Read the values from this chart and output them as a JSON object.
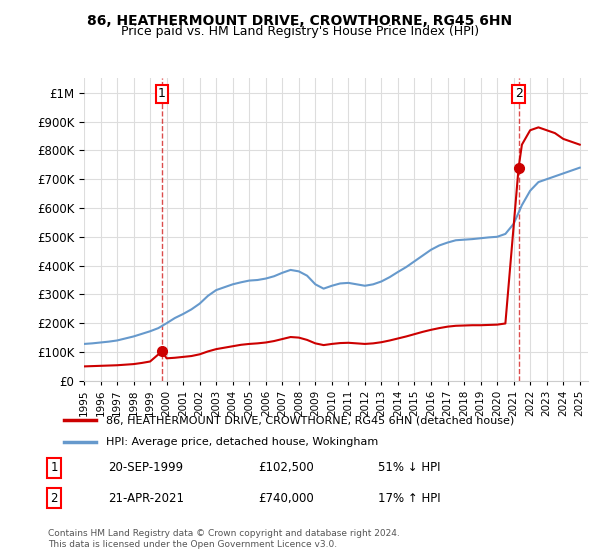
{
  "title": "86, HEATHERMOUNT DRIVE, CROWTHORNE, RG45 6HN",
  "subtitle": "Price paid vs. HM Land Registry's House Price Index (HPI)",
  "property_label": "86, HEATHERMOUNT DRIVE, CROWTHORNE, RG45 6HN (detached house)",
  "hpi_label": "HPI: Average price, detached house, Wokingham",
  "sale1_label": "1",
  "sale1_date": "20-SEP-1999",
  "sale1_price": "£102,500",
  "sale1_note": "51% ↓ HPI",
  "sale2_label": "2",
  "sale2_date": "21-APR-2021",
  "sale2_price": "£740,000",
  "sale2_note": "17% ↑ HPI",
  "footer": "Contains HM Land Registry data © Crown copyright and database right 2024.\nThis data is licensed under the Open Government Licence v3.0.",
  "property_color": "#cc0000",
  "hpi_color": "#6699cc",
  "sale_marker_color": "#cc0000",
  "dashed_line_color": "#cc0000",
  "background_color": "#ffffff",
  "grid_color": "#dddddd",
  "ylim": [
    0,
    1050000
  ],
  "xlim_start": 1995.0,
  "xlim_end": 2025.5,
  "sale1_x": 1999.72,
  "sale1_y": 102500,
  "sale2_x": 2021.3,
  "sale2_y": 740000,
  "hpi_x": [
    1995,
    1995.5,
    1996,
    1996.5,
    1997,
    1997.5,
    1998,
    1998.5,
    1999,
    1999.5,
    2000,
    2000.5,
    2001,
    2001.5,
    2002,
    2002.5,
    2003,
    2003.5,
    2004,
    2004.5,
    2005,
    2005.5,
    2006,
    2006.5,
    2007,
    2007.5,
    2008,
    2008.5,
    2009,
    2009.5,
    2010,
    2010.5,
    2011,
    2011.5,
    2012,
    2012.5,
    2013,
    2013.5,
    2014,
    2014.5,
    2015,
    2015.5,
    2016,
    2016.5,
    2017,
    2017.5,
    2018,
    2018.5,
    2019,
    2019.5,
    2020,
    2020.5,
    2021,
    2021.5,
    2022,
    2022.5,
    2023,
    2023.5,
    2024,
    2024.5,
    2025
  ],
  "hpi_y": [
    128000,
    130000,
    133000,
    136000,
    140000,
    147000,
    154000,
    163000,
    172000,
    183000,
    200000,
    218000,
    232000,
    248000,
    268000,
    295000,
    315000,
    325000,
    335000,
    342000,
    348000,
    350000,
    355000,
    363000,
    375000,
    385000,
    380000,
    365000,
    335000,
    320000,
    330000,
    338000,
    340000,
    335000,
    330000,
    335000,
    345000,
    360000,
    378000,
    395000,
    415000,
    435000,
    455000,
    470000,
    480000,
    488000,
    490000,
    492000,
    495000,
    498000,
    500000,
    510000,
    545000,
    610000,
    660000,
    690000,
    700000,
    710000,
    720000,
    730000,
    740000
  ],
  "prop_x": [
    1995,
    1995.5,
    1996,
    1996.5,
    1997,
    1997.5,
    1998,
    1998.5,
    1999,
    1999.72,
    2000,
    2000.5,
    2001,
    2001.5,
    2002,
    2002.5,
    2003,
    2003.5,
    2004,
    2004.5,
    2005,
    2005.5,
    2006,
    2006.5,
    2007,
    2007.5,
    2008,
    2008.5,
    2009,
    2009.5,
    2010,
    2010.5,
    2011,
    2011.5,
    2012,
    2012.5,
    2013,
    2013.5,
    2014,
    2014.5,
    2015,
    2015.5,
    2016,
    2016.5,
    2017,
    2017.5,
    2018,
    2018.5,
    2019,
    2019.5,
    2020,
    2020.5,
    2021.3,
    2021.5,
    2022,
    2022.5,
    2023,
    2023.5,
    2024,
    2024.5,
    2025
  ],
  "prop_y": [
    50000,
    51000,
    52000,
    53000,
    54000,
    56000,
    58000,
    62000,
    67000,
    102500,
    78000,
    80000,
    83000,
    86000,
    92000,
    102000,
    110000,
    115000,
    120000,
    125000,
    128000,
    130000,
    133000,
    138000,
    145000,
    152000,
    150000,
    142000,
    130000,
    124000,
    128000,
    131000,
    132000,
    130000,
    128000,
    130000,
    134000,
    140000,
    147000,
    154000,
    162000,
    170000,
    177000,
    183000,
    188000,
    191000,
    192000,
    193000,
    193000,
    194000,
    195000,
    199000,
    740000,
    820000,
    870000,
    880000,
    870000,
    860000,
    840000,
    830000,
    820000
  ]
}
